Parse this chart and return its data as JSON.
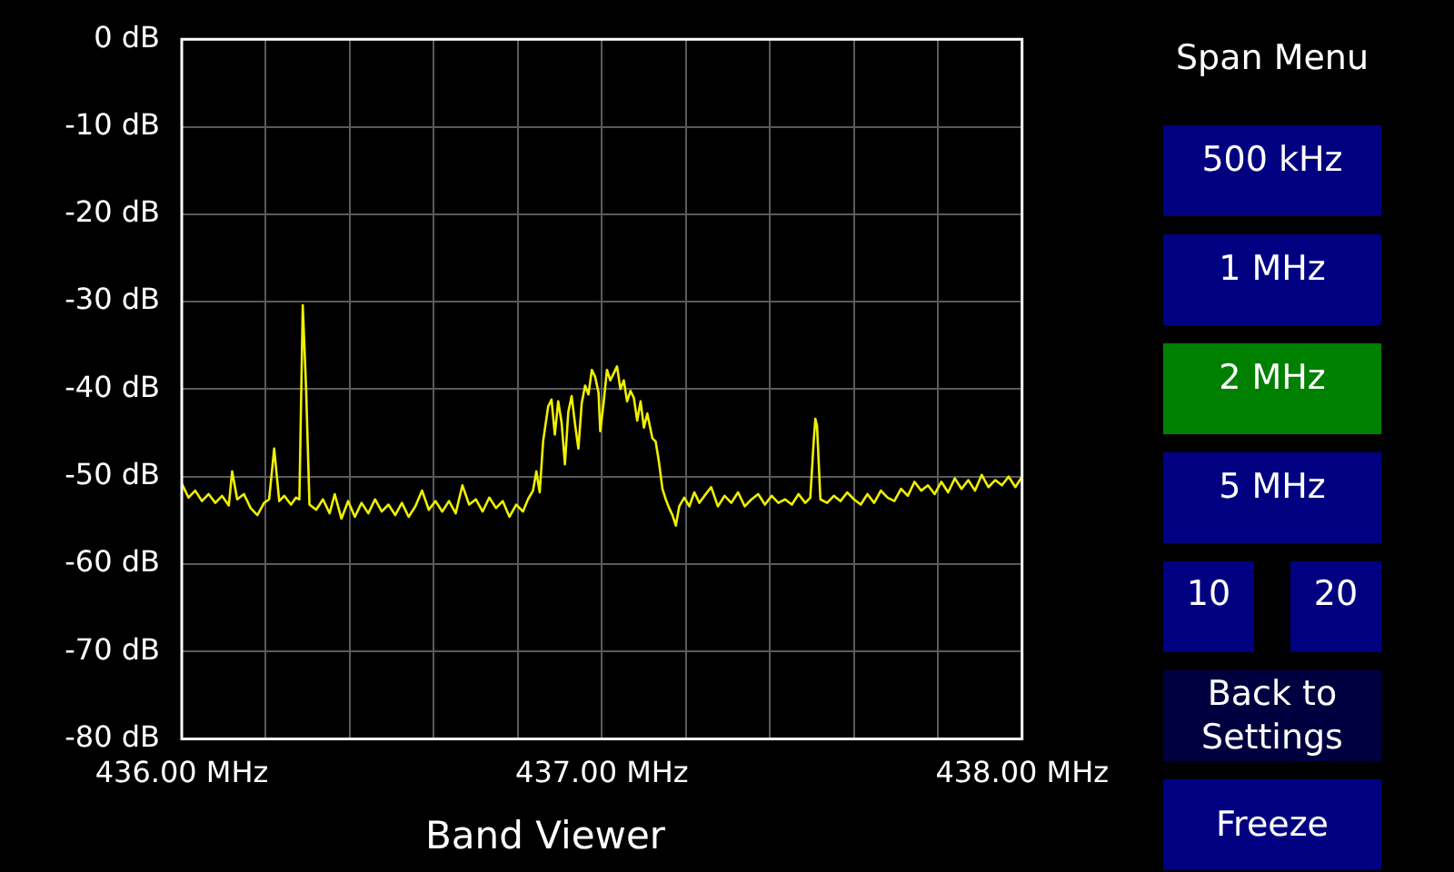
{
  "chart_data": {
    "type": "line",
    "title": "Band Viewer",
    "x": [
      436.0,
      436.016,
      436.032,
      436.048,
      436.064,
      436.08,
      436.096,
      436.112,
      436.12,
      436.132,
      436.148,
      436.164,
      436.18,
      436.196,
      436.208,
      436.22,
      436.232,
      436.244,
      436.26,
      436.272,
      436.28,
      436.288,
      436.296,
      436.304,
      436.32,
      436.336,
      436.352,
      436.364,
      436.38,
      436.396,
      436.412,
      436.428,
      436.444,
      436.46,
      436.476,
      436.492,
      436.508,
      436.524,
      436.54,
      436.556,
      436.572,
      436.588,
      436.604,
      436.62,
      436.636,
      436.652,
      436.668,
      436.684,
      436.7,
      436.716,
      436.732,
      436.748,
      436.764,
      436.78,
      436.796,
      436.812,
      436.824,
      436.836,
      436.844,
      436.852,
      436.86,
      436.872,
      436.88,
      436.888,
      436.896,
      436.904,
      436.912,
      436.92,
      436.928,
      436.936,
      436.944,
      436.952,
      436.96,
      436.968,
      436.976,
      436.984,
      436.992,
      436.996,
      437.004,
      437.012,
      437.02,
      437.028,
      437.036,
      437.044,
      437.052,
      437.06,
      437.068,
      437.076,
      437.084,
      437.092,
      437.1,
      437.108,
      437.12,
      437.128,
      437.136,
      437.144,
      437.152,
      437.16,
      437.168,
      437.176,
      437.184,
      437.196,
      437.208,
      437.22,
      437.232,
      437.244,
      437.26,
      437.276,
      437.292,
      437.308,
      437.324,
      437.34,
      437.356,
      437.372,
      437.388,
      437.404,
      437.42,
      437.436,
      437.452,
      437.468,
      437.484,
      437.496,
      437.504,
      437.508,
      437.512,
      437.52,
      437.536,
      437.552,
      437.568,
      437.584,
      437.6,
      437.616,
      437.632,
      437.648,
      437.664,
      437.68,
      437.696,
      437.712,
      437.728,
      437.744,
      437.76,
      437.776,
      437.792,
      437.808,
      437.824,
      437.84,
      437.856,
      437.872,
      437.888,
      437.904,
      437.92,
      437.936,
      437.952,
      437.968,
      437.984,
      438.0
    ],
    "series": [
      {
        "color": "#f0f000",
        "values": [
          -50.8,
          -52.4,
          -51.6,
          -52.8,
          -52.0,
          -53.0,
          -52.2,
          -53.3,
          -49.4,
          -52.6,
          -52.0,
          -53.6,
          -54.4,
          -53.0,
          -52.6,
          -46.8,
          -52.8,
          -52.2,
          -53.2,
          -52.4,
          -52.6,
          -30.4,
          -40.0,
          -53.2,
          -53.8,
          -52.6,
          -54.2,
          -52.0,
          -54.8,
          -52.8,
          -54.6,
          -53.0,
          -54.2,
          -52.6,
          -54.0,
          -53.2,
          -54.4,
          -53.0,
          -54.6,
          -53.4,
          -51.6,
          -53.8,
          -52.8,
          -54.0,
          -52.8,
          -54.2,
          -51.0,
          -53.2,
          -52.6,
          -54.0,
          -52.4,
          -53.6,
          -52.8,
          -54.6,
          -53.2,
          -54.0,
          -52.6,
          -51.6,
          -49.4,
          -51.8,
          -46.0,
          -42.0,
          -41.2,
          -45.2,
          -41.4,
          -43.8,
          -48.6,
          -42.6,
          -40.8,
          -44.0,
          -46.8,
          -41.6,
          -39.6,
          -40.6,
          -37.8,
          -38.6,
          -40.4,
          -44.8,
          -41.6,
          -37.8,
          -39.0,
          -38.2,
          -37.4,
          -40.0,
          -39.0,
          -41.4,
          -40.2,
          -41.0,
          -43.6,
          -41.4,
          -44.4,
          -42.8,
          -45.6,
          -46.0,
          -48.4,
          -51.4,
          -52.6,
          -53.6,
          -54.4,
          -55.6,
          -53.4,
          -52.4,
          -53.4,
          -51.8,
          -53.0,
          -52.2,
          -51.2,
          -53.4,
          -52.2,
          -53.0,
          -51.8,
          -53.4,
          -52.6,
          -52.0,
          -53.2,
          -52.2,
          -53.0,
          -52.6,
          -53.2,
          -52.0,
          -53.0,
          -52.4,
          -46.0,
          -43.4,
          -44.2,
          -52.6,
          -53.0,
          -52.2,
          -52.8,
          -51.8,
          -52.6,
          -53.2,
          -52.0,
          -53.0,
          -51.6,
          -52.4,
          -52.8,
          -51.4,
          -52.2,
          -50.6,
          -51.6,
          -51.0,
          -52.0,
          -50.6,
          -51.8,
          -50.2,
          -51.4,
          -50.4,
          -51.6,
          -49.8,
          -51.2,
          -50.4,
          -51.0,
          -50.0,
          -51.2,
          -50.0
        ]
      }
    ],
    "xlim": [
      436,
      438
    ],
    "xticks": [
      {
        "value": 436,
        "label": "436.00 MHz"
      },
      {
        "value": 436.2,
        "label": null
      },
      {
        "value": 436.4,
        "label": null
      },
      {
        "value": 436.6,
        "label": null
      },
      {
        "value": 436.8,
        "label": null
      },
      {
        "value": 437,
        "label": "437.00 MHz"
      },
      {
        "value": 437.2,
        "label": null
      },
      {
        "value": 437.4,
        "label": null
      },
      {
        "value": 437.6,
        "label": null
      },
      {
        "value": 437.8,
        "label": null
      },
      {
        "value": 438,
        "label": "438.00 MHz"
      }
    ],
    "ylim": [
      -80,
      0
    ],
    "yticks": [
      {
        "value": 0,
        "label": "0 dB"
      },
      {
        "value": -10,
        "label": "-10 dB"
      },
      {
        "value": -20,
        "label": "-20 dB"
      },
      {
        "value": -30,
        "label": "-30 dB"
      },
      {
        "value": -40,
        "label": "-40 dB"
      },
      {
        "value": -50,
        "label": "-50 dB"
      },
      {
        "value": -60,
        "label": "-60 dB"
      },
      {
        "value": -70,
        "label": "-70 dB"
      },
      {
        "value": -80,
        "label": "-80 dB"
      }
    ],
    "grid": true,
    "legend": false,
    "marker": "none",
    "line_style": "solid",
    "annotations": [
      "Span Menu",
      "500 kHz",
      "1 MHz",
      "2 MHz",
      "5 MHz",
      "10",
      "20",
      "Back to Settings",
      "Freeze"
    ]
  }
}
